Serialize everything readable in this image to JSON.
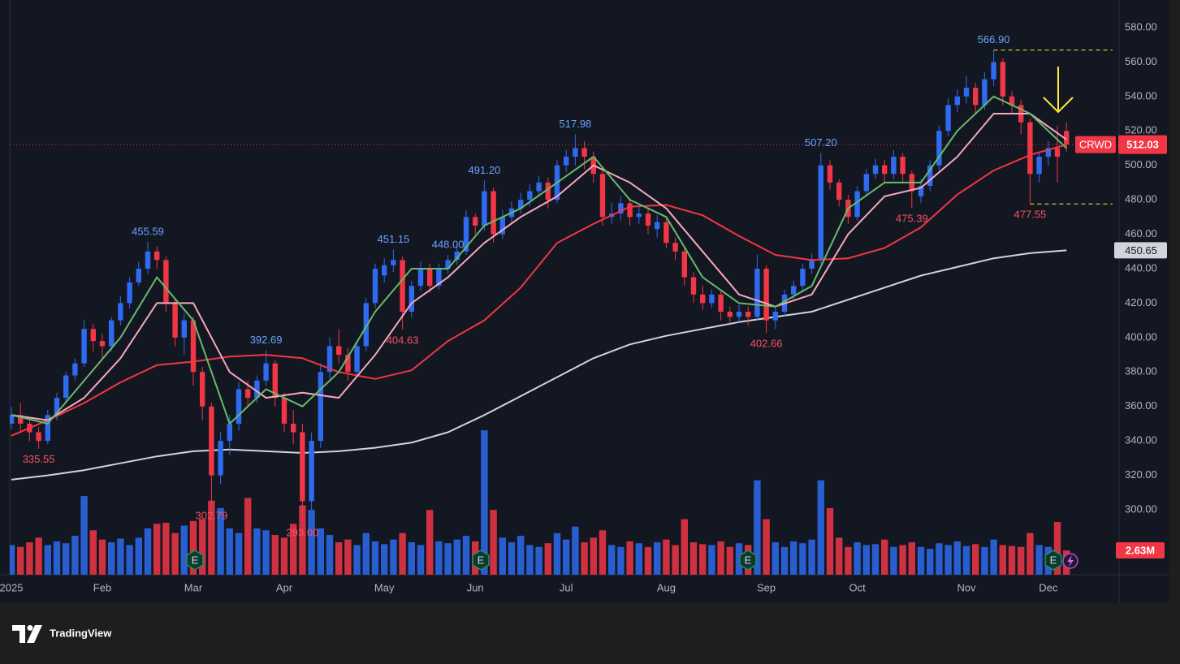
{
  "chart_data": {
    "type": "candlestick",
    "symbol": "CRWD",
    "earnings_label": "E",
    "categories": [
      "2025",
      null,
      null,
      null,
      null,
      null,
      null,
      null,
      null,
      null,
      "Feb",
      null,
      null,
      null,
      null,
      null,
      null,
      null,
      null,
      null,
      "Mar",
      null,
      null,
      null,
      null,
      null,
      null,
      null,
      null,
      null,
      "Apr",
      null,
      null,
      null,
      null,
      null,
      null,
      null,
      null,
      null,
      null,
      "May",
      null,
      null,
      null,
      null,
      null,
      null,
      null,
      null,
      null,
      "Jun",
      null,
      null,
      null,
      null,
      null,
      null,
      null,
      null,
      null,
      "Jul",
      null,
      null,
      null,
      null,
      null,
      null,
      null,
      null,
      null,
      null,
      "Aug",
      null,
      null,
      null,
      null,
      null,
      null,
      null,
      null,
      null,
      null,
      "Sep",
      null,
      null,
      null,
      null,
      null,
      null,
      null,
      null,
      null,
      "Oct",
      null,
      null,
      null,
      null,
      null,
      null,
      null,
      null,
      null,
      null,
      null,
      "Nov",
      null,
      null,
      null,
      null,
      null,
      null,
      null,
      null,
      "Dec",
      null,
      null
    ],
    "open": [
      350,
      355,
      350,
      345,
      340,
      355,
      365,
      378,
      385,
      405,
      398,
      395,
      410,
      420,
      432,
      440,
      450,
      445,
      420,
      400,
      410,
      380,
      360,
      320,
      340,
      350,
      370,
      365,
      375,
      385,
      365,
      350,
      345,
      305,
      340,
      380,
      395,
      390,
      380,
      395,
      420,
      436,
      442,
      445,
      415,
      430,
      440,
      430,
      440,
      445,
      450,
      470,
      465,
      485,
      460,
      470,
      475,
      480,
      485,
      490,
      480,
      500,
      505,
      510,
      505,
      495,
      470,
      472,
      478,
      470,
      472,
      463,
      467,
      455,
      450,
      435,
      425,
      420,
      425,
      415,
      412,
      415,
      412,
      440,
      410,
      415,
      425,
      430,
      440,
      445,
      500,
      490,
      480,
      470,
      485,
      495,
      500,
      495,
      505,
      495,
      482,
      488,
      500,
      520,
      535,
      540,
      545,
      535,
      550,
      560,
      540,
      535,
      525,
      495,
      505,
      510,
      520
    ],
    "high": [
      360,
      362,
      352,
      348,
      358,
      368,
      380,
      388,
      410,
      408,
      402,
      412,
      424,
      435,
      444,
      455.59,
      453,
      447,
      423,
      414,
      412,
      383,
      362,
      345,
      355,
      374,
      375,
      378,
      392.69,
      387,
      368,
      358,
      350,
      345,
      385,
      400,
      405,
      394,
      398,
      423,
      443,
      446,
      451.15,
      447,
      433,
      444,
      443,
      443,
      448,
      453,
      474,
      472,
      491.2,
      487,
      474,
      479,
      484,
      489,
      494,
      493,
      503,
      509,
      517.98,
      514,
      508,
      497,
      478,
      482,
      481,
      476,
      475,
      471,
      470,
      458,
      452,
      438,
      430,
      428,
      427,
      418,
      419,
      418,
      448,
      442,
      418,
      428,
      433,
      443,
      449,
      507.2,
      503,
      492,
      483,
      488,
      498,
      504,
      503,
      509,
      507,
      497,
      492,
      503,
      523,
      539,
      544,
      552,
      548,
      554,
      566.9,
      562,
      543,
      538,
      527,
      508,
      514,
      523,
      525
    ],
    "low": [
      347,
      345,
      340,
      335.55,
      338,
      352,
      362,
      375,
      383,
      392,
      388,
      392,
      407,
      417,
      430,
      437,
      440,
      415,
      395,
      390,
      372,
      352,
      302.79,
      315,
      332,
      346,
      360,
      362,
      372,
      360,
      345,
      338,
      293,
      300,
      336,
      376,
      385,
      375,
      377,
      392,
      417,
      432,
      438,
      404.63,
      412,
      427,
      426,
      428,
      437,
      442,
      448,
      460,
      462,
      455,
      457,
      466,
      472,
      476,
      482,
      475,
      478,
      496,
      500,
      498,
      490,
      465,
      466,
      468,
      465,
      466,
      460,
      458,
      452,
      445,
      430,
      420,
      416,
      417,
      410,
      408,
      409,
      407,
      410,
      402.66,
      405,
      412,
      422,
      427,
      437,
      443,
      486,
      476,
      466,
      468,
      482,
      492,
      490,
      492,
      490,
      475.39,
      478,
      485,
      497,
      517,
      531,
      536,
      530,
      532,
      546,
      535,
      530,
      518,
      477.55,
      490,
      500,
      490,
      508
    ],
    "close": [
      355,
      350,
      345,
      340,
      355,
      365,
      378,
      385,
      405,
      398,
      395,
      410,
      420,
      432,
      440,
      450,
      445,
      420,
      400,
      410,
      380,
      360,
      320,
      340,
      350,
      370,
      365,
      375,
      385,
      365,
      350,
      345,
      305,
      340,
      380,
      395,
      390,
      380,
      395,
      420,
      440,
      442,
      445,
      415,
      430,
      440,
      430,
      440,
      445,
      450,
      470,
      465,
      485,
      460,
      470,
      475,
      480,
      485,
      490,
      480,
      500,
      505,
      510,
      505,
      495,
      470,
      472,
      478,
      470,
      472,
      465,
      467,
      455,
      450,
      435,
      425,
      420,
      425,
      415,
      412,
      415,
      412,
      440,
      410,
      415,
      425,
      430,
      440,
      445,
      500,
      490,
      480,
      470,
      485,
      495,
      500,
      495,
      505,
      495,
      485,
      488,
      500,
      520,
      535,
      540,
      545,
      535,
      550,
      560,
      540,
      535,
      525,
      495,
      505,
      510,
      505,
      512.03
    ],
    "up_color": "#2e6bf0",
    "down_color": "#f23645",
    "ylim": [
      262.3,
      596
    ],
    "yticks": [
      {
        "value": 300,
        "label": "300.00"
      },
      {
        "value": 320,
        "label": "320.00"
      },
      {
        "value": 340,
        "label": "340.00"
      },
      {
        "value": 360,
        "label": "360.00"
      },
      {
        "value": 380,
        "label": "380.00"
      },
      {
        "value": 400,
        "label": "400.00"
      },
      {
        "value": 420,
        "label": "420.00"
      },
      {
        "value": 440,
        "label": "440.00"
      },
      {
        "value": 460,
        "label": "460.00"
      },
      {
        "value": 480,
        "label": "480.00"
      },
      {
        "value": 500,
        "label": "500.00"
      },
      {
        "value": 520,
        "label": "520.00"
      },
      {
        "value": 540,
        "label": "540.00"
      },
      {
        "value": 560,
        "label": "560.00"
      },
      {
        "value": 580,
        "label": "580.00"
      }
    ],
    "grid": false,
    "series": [
      {
        "color": "#d1d4dc",
        "price_label": true,
        "x": [
          0,
          4,
          8,
          12,
          16,
          20,
          24,
          28,
          32,
          36,
          40,
          44,
          48,
          52,
          56,
          60,
          64,
          68,
          72,
          76,
          80,
          84,
          88,
          92,
          96,
          100,
          104,
          108,
          112,
          116
        ],
        "values": [
          317.5,
          320,
          323,
          327,
          331,
          334,
          335,
          334,
          333,
          334,
          336,
          339,
          345,
          355,
          366,
          377,
          388,
          396,
          401,
          405,
          409,
          412,
          415,
          422,
          429,
          436,
          441,
          446,
          449,
          450.65
        ]
      },
      {
        "color": "#f23645",
        "x": [
          0,
          4,
          8,
          12,
          16,
          20,
          24,
          28,
          32,
          36,
          40,
          44,
          48,
          52,
          56,
          60,
          64,
          68,
          72,
          76,
          80,
          84,
          88,
          92,
          96,
          100,
          104,
          108,
          112,
          116
        ],
        "values": [
          343,
          352,
          362,
          374,
          384,
          386,
          389,
          390,
          388,
          380,
          376,
          381,
          398,
          410,
          429,
          455,
          466,
          476,
          477,
          471,
          459,
          448,
          445,
          446,
          452,
          464,
          483,
          497,
          506,
          512
        ]
      },
      {
        "color": "#f7a8bd",
        "x": [
          0,
          4,
          8,
          12,
          16,
          20,
          24,
          28,
          32,
          36,
          40,
          44,
          48,
          52,
          56,
          60,
          64,
          68,
          72,
          76,
          80,
          84,
          88,
          92,
          96,
          100,
          104,
          108,
          112,
          116
        ],
        "values": [
          355,
          352,
          365,
          388,
          420,
          420,
          380,
          365,
          368,
          365,
          390,
          420,
          435,
          455,
          470,
          482,
          500,
          490,
          475,
          450,
          425,
          418,
          425,
          460,
          482,
          487,
          505,
          530,
          530,
          515
        ]
      },
      {
        "color": "#66bb6a",
        "x": [
          0,
          4,
          8,
          12,
          16,
          20,
          24,
          28,
          32,
          36,
          40,
          44,
          48,
          52,
          56,
          60,
          64,
          68,
          72,
          76,
          80,
          84,
          88,
          92,
          96,
          100,
          104,
          108,
          112,
          116
        ],
        "values": [
          355,
          350,
          375,
          400,
          435,
          410,
          350,
          370,
          360,
          380,
          415,
          440,
          440,
          465,
          475,
          490,
          505,
          480,
          470,
          435,
          420,
          418,
          430,
          475,
          490,
          490,
          520,
          540,
          530,
          510
        ]
      }
    ],
    "volume": {
      "ylim": [
        0,
        62.1
      ],
      "last_label": "2.63M",
      "values": [
        3.2,
        3.0,
        3.5,
        4.0,
        3.2,
        3.6,
        3.4,
        4.2,
        8.5,
        4.8,
        3.8,
        3.5,
        3.9,
        3.2,
        4.0,
        5.0,
        5.5,
        5.6,
        4.5,
        5.3,
        5.8,
        6.0,
        8.0,
        7.2,
        5.0,
        4.5,
        8.3,
        5.0,
        4.8,
        4.3,
        4.0,
        5.5,
        7.5,
        7.0,
        5.0,
        4.3,
        3.5,
        3.8,
        3.2,
        4.5,
        3.6,
        3.3,
        3.8,
        4.5,
        3.5,
        3.2,
        7.0,
        3.6,
        3.4,
        3.8,
        4.2,
        3.6,
        15.6,
        7.0,
        4.0,
        3.5,
        4.2,
        3.2,
        3.0,
        3.4,
        4.5,
        3.8,
        5.2,
        3.5,
        4.0,
        4.8,
        3.2,
        3.0,
        3.6,
        3.4,
        3.0,
        3.5,
        3.8,
        3.2,
        6.0,
        3.5,
        3.3,
        3.2,
        3.6,
        3.0,
        3.4,
        3.2,
        10.2,
        6.0,
        3.5,
        3.0,
        3.6,
        3.4,
        3.8,
        10.2,
        7.2,
        4.0,
        3.0,
        3.5,
        3.2,
        3.3,
        3.8,
        3.0,
        3.2,
        3.5,
        3.0,
        2.8,
        3.4,
        3.2,
        3.6,
        3.1,
        3.3,
        3.0,
        3.8,
        3.2,
        3.1,
        3.0,
        4.5,
        3.2,
        3.0,
        5.7,
        2.63
      ]
    },
    "annotations": [
      {
        "value": 455.59,
        "label": "455.59",
        "color": "#6aa3ff"
      },
      {
        "value": 335.55,
        "label": "335.55",
        "color": "#f7525f"
      },
      {
        "value": 392.69,
        "label": "392.69",
        "color": "#6aa3ff"
      },
      {
        "value": 302.79,
        "label": "302.79",
        "color": "#f7525f"
      },
      {
        "value": 293,
        "label": "293.00",
        "color": "#f7525f"
      },
      {
        "value": 451.15,
        "label": "451.15",
        "color": "#6aa3ff"
      },
      {
        "value": 404.63,
        "label": "404.63",
        "color": "#f7525f"
      },
      {
        "value": 491.2,
        "label": "491.20",
        "color": "#6aa3ff"
      },
      {
        "value": 517.98,
        "label": "517.98",
        "color": "#6aa3ff"
      },
      {
        "value": 448,
        "label": "448.00",
        "color": "#6aa3ff"
      },
      {
        "value": 402.66,
        "label": "402.66",
        "color": "#f7525f"
      },
      {
        "value": 507.2,
        "label": "507.20",
        "color": "#6aa3ff"
      },
      {
        "value": 475.39,
        "label": "475.39",
        "color": "#f7525f"
      },
      {
        "value": 566.9,
        "label": "566.90",
        "color": "#6aa3ff",
        "extend": true
      },
      {
        "value": 477.55,
        "label": "477.55",
        "color": "#f7525f",
        "extend": true
      }
    ]
  },
  "footer": {
    "brand": "TradingView"
  }
}
